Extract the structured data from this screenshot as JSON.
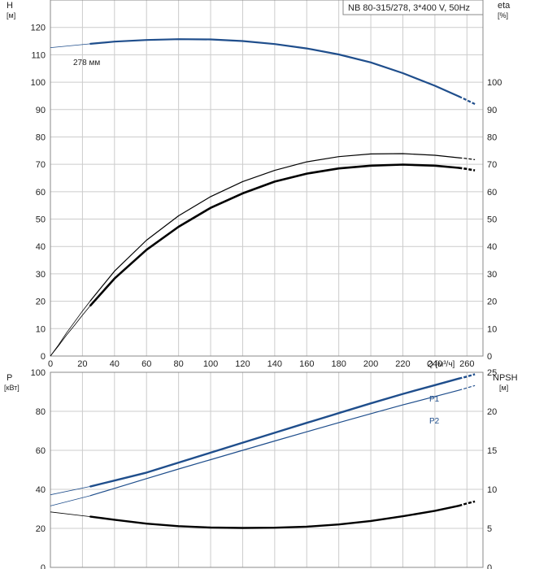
{
  "model_label": "NB 80-315/278, 3*400 V, 50Hz",
  "colors": {
    "curve_blue": "#1f4e8c",
    "curve_black": "#000000",
    "grid": "#cccccc",
    "frame": "#888888"
  },
  "chart_data": [
    {
      "type": "line",
      "name": "head-efficiency",
      "left_axis": {
        "unit_title": "H",
        "unit": "[м]",
        "ticks": [
          0,
          10,
          20,
          30,
          40,
          50,
          60,
          70,
          80,
          90,
          100,
          110,
          120
        ],
        "ylim": [
          0,
          130
        ]
      },
      "right_axis": {
        "unit_title": "eta",
        "unit": "[%]",
        "ticks": [
          0,
          10,
          20,
          30,
          40,
          50,
          60,
          70,
          80,
          90,
          100
        ],
        "ylim": [
          0,
          130
        ]
      },
      "x_axis": {
        "label": "Q [м³/ч]",
        "ticks": [
          0,
          20,
          40,
          60,
          80,
          100,
          120,
          140,
          160,
          180,
          200,
          220,
          240,
          260
        ],
        "xlim": [
          0,
          270
        ]
      },
      "curve_label": "278 мм",
      "series": [
        {
          "key": "H",
          "axis": "left",
          "color": "#1f4e8c",
          "width": 2.2,
          "x": [
            25,
            40,
            60,
            80,
            100,
            120,
            140,
            160,
            180,
            200,
            220,
            240,
            255
          ],
          "y": [
            114,
            114.8,
            115.4,
            115.7,
            115.6,
            115,
            113.9,
            112.3,
            110.1,
            107.2,
            103.3,
            98.7,
            94.8
          ],
          "ext_before": {
            "x": [
              0,
              25
            ],
            "y": [
              112.6,
              114
            ]
          },
          "ext_after": {
            "x": [
              255,
              260,
              265
            ],
            "y": [
              94.8,
              93.4,
              92
            ]
          }
        },
        {
          "key": "eta_thin",
          "axis": "right",
          "color": "#000000",
          "width": 1.2,
          "x": [
            25,
            40,
            60,
            80,
            100,
            120,
            140,
            160,
            180,
            200,
            220,
            240,
            255
          ],
          "y": [
            20.2,
            31,
            42.3,
            51.2,
            58.2,
            63.7,
            67.8,
            70.9,
            72.8,
            73.8,
            73.9,
            73.3,
            72.4
          ],
          "ext_before": {
            "x": [
              0,
              5,
              10,
              15,
              20,
              25
            ],
            "y": [
              0,
              4,
              8.4,
              12.4,
              16.4,
              20.2
            ]
          },
          "ext_after": {
            "x": [
              255,
              260,
              265
            ],
            "y": [
              72.4,
              72.1,
              71.7
            ]
          }
        },
        {
          "key": "eta_thick",
          "axis": "right",
          "color": "#000000",
          "width": 2.6,
          "x": [
            25,
            40,
            60,
            80,
            100,
            120,
            140,
            160,
            180,
            200,
            220,
            240,
            255
          ],
          "y": [
            18.5,
            28.3,
            38.8,
            47.2,
            54.1,
            59.4,
            63.7,
            66.6,
            68.5,
            69.5,
            69.9,
            69.5,
            68.7
          ],
          "ext_before": {
            "x": [
              0,
              5,
              10,
              15,
              20,
              25
            ],
            "y": [
              0,
              3.7,
              7.6,
              11.2,
              14.9,
              18.5
            ]
          },
          "ext_after": {
            "x": [
              255,
              260,
              265
            ],
            "y": [
              68.7,
              68.3,
              67.8
            ]
          }
        }
      ]
    },
    {
      "type": "line",
      "name": "power-npsh",
      "left_axis": {
        "unit_title": "P",
        "unit": "[кВт]",
        "ticks": [
          0,
          20,
          40,
          60,
          80,
          100
        ],
        "ylim": [
          0,
          100
        ]
      },
      "right_axis": {
        "unit_title": "NPSH",
        "unit": "[м]",
        "ticks": [
          0,
          5,
          10,
          15,
          20,
          25
        ],
        "ylim": [
          0,
          25
        ]
      },
      "x_axis": {
        "xlim": [
          0,
          270
        ]
      },
      "series": [
        {
          "key": "P1",
          "label": "P1",
          "axis": "left",
          "color": "#1f4e8c",
          "width": 2.4,
          "x": [
            25,
            40,
            60,
            80,
            100,
            120,
            140,
            160,
            180,
            200,
            220,
            240,
            255
          ],
          "y": [
            41.5,
            44.5,
            48.6,
            53.7,
            58.8,
            63.9,
            69,
            74.1,
            79.1,
            84.1,
            88.9,
            93.4,
            96.8
          ],
          "ext_before": {
            "x": [
              0,
              25
            ],
            "y": [
              37.2,
              41.5
            ]
          },
          "ext_after": {
            "x": [
              255,
              260,
              265
            ],
            "y": [
              96.8,
              97.8,
              99
            ]
          }
        },
        {
          "key": "P2",
          "label": "P2",
          "axis": "left",
          "color": "#1f4e8c",
          "width": 1.2,
          "x": [
            25,
            40,
            60,
            80,
            100,
            120,
            140,
            160,
            180,
            200,
            220,
            240,
            255
          ],
          "y": [
            36.8,
            40.5,
            45.5,
            50.4,
            55.2,
            60,
            64.8,
            69.5,
            74.2,
            78.8,
            83.3,
            87.6,
            90.8
          ],
          "ext_before": {
            "x": [
              0,
              25
            ],
            "y": [
              31.5,
              36.8
            ]
          },
          "ext_after": {
            "x": [
              255,
              260,
              265
            ],
            "y": [
              90.8,
              92,
              93.2
            ]
          }
        },
        {
          "key": "NPSH",
          "axis": "right",
          "color": "#000000",
          "width": 2.4,
          "x": [
            25,
            40,
            60,
            80,
            100,
            120,
            140,
            160,
            180,
            200,
            220,
            240,
            255
          ],
          "y": [
            6.5,
            6.1,
            5.6,
            5.28,
            5.1,
            5.05,
            5.08,
            5.22,
            5.5,
            5.95,
            6.55,
            7.25,
            7.9
          ],
          "ext_before": {
            "x": [
              0,
              25
            ],
            "y": [
              7.1,
              6.5
            ]
          },
          "ext_after": {
            "x": [
              255,
              260,
              265
            ],
            "y": [
              7.9,
              8.2,
              8.45
            ]
          }
        }
      ]
    }
  ]
}
